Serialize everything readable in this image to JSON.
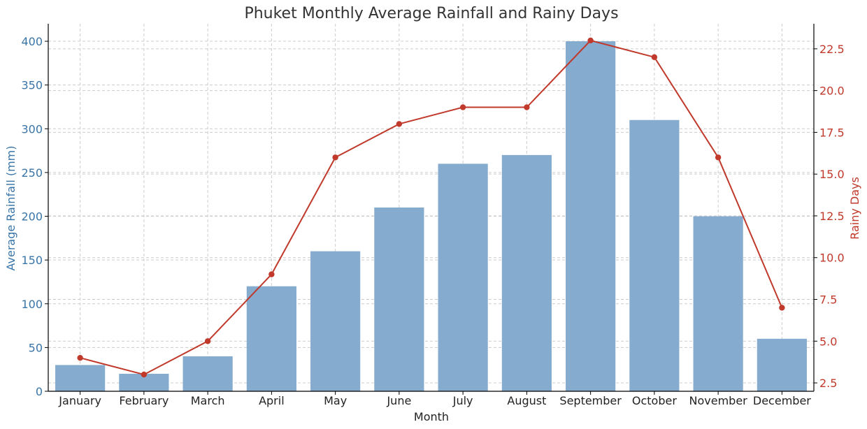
{
  "chart_data": {
    "type": "bar",
    "title": "Phuket Monthly Average Rainfall and Rainy Days",
    "xlabel": "Month",
    "ylabel": "Average Rainfall (mm)",
    "y2label": "Rainy Days",
    "categories": [
      "January",
      "February",
      "March",
      "April",
      "May",
      "June",
      "July",
      "August",
      "September",
      "October",
      "November",
      "December"
    ],
    "series": [
      {
        "name": "Average Rainfall (mm)",
        "type": "bar",
        "axis": "left",
        "color": "#85abcf",
        "values": [
          30,
          20,
          40,
          120,
          160,
          210,
          260,
          270,
          400,
          310,
          200,
          60
        ]
      },
      {
        "name": "Rainy Days",
        "type": "line",
        "axis": "right",
        "color": "#c0392b",
        "values": [
          4,
          3,
          5,
          9,
          16,
          18,
          19,
          19,
          23,
          22,
          16,
          7
        ]
      }
    ],
    "ylim": [
      0,
      420
    ],
    "yticks": [
      "0",
      "50",
      "100",
      "150",
      "200",
      "250",
      "300",
      "350",
      "400"
    ],
    "y2lim": [
      2,
      24
    ],
    "y2ticks": [
      "2.5",
      "5.0",
      "7.5",
      "10.0",
      "12.5",
      "15.0",
      "17.5",
      "20.0",
      "22.5"
    ],
    "left_axis_color": "#3a75a8",
    "right_axis_color": "#c0392b",
    "grid": true
  }
}
